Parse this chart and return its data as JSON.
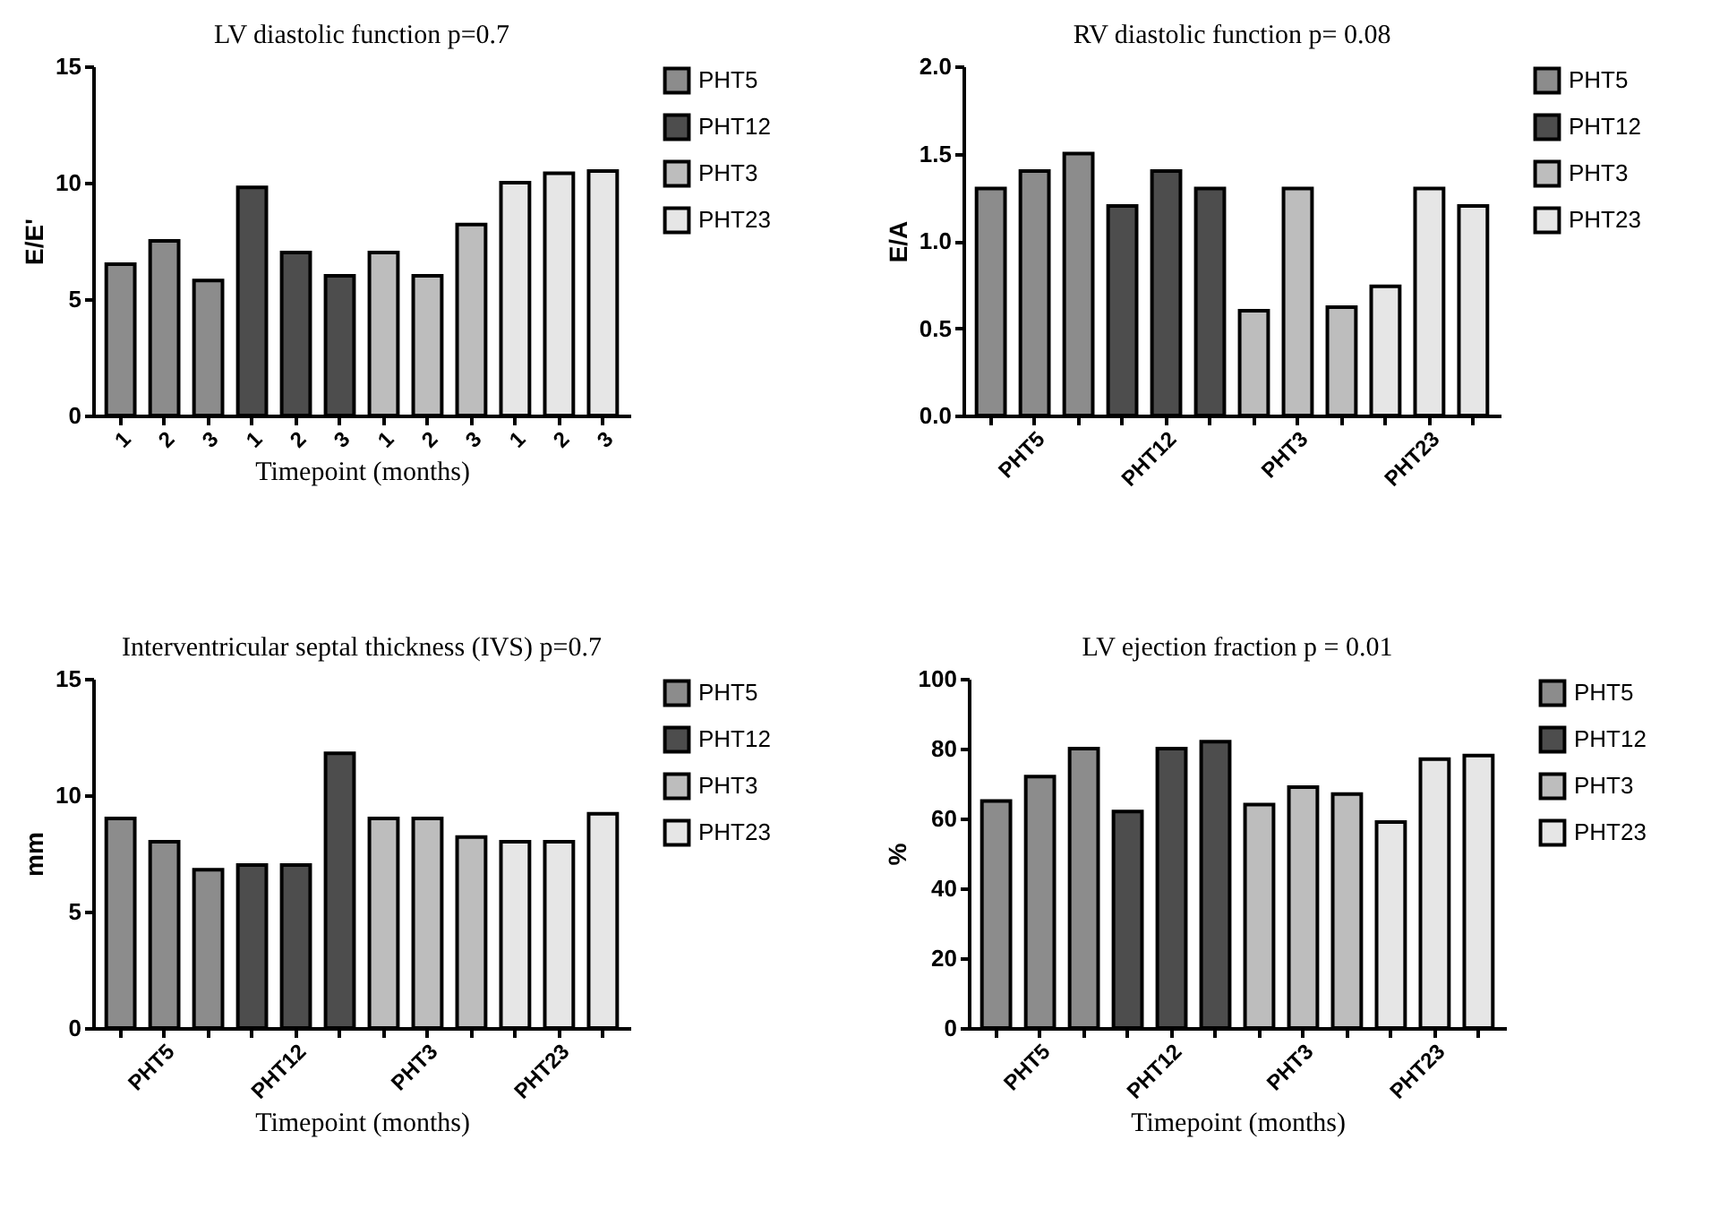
{
  "chart_data": [
    {
      "type": "bar",
      "title": "LV diastolic function p=0.7",
      "xlabel": "Timepoint (months)",
      "ylabel": "E/E'",
      "categories": [
        "1",
        "2",
        "3",
        "1",
        "2",
        "3",
        "1",
        "2",
        "3",
        "1",
        "2",
        "3"
      ],
      "ylim": [
        0,
        15
      ],
      "yticks": [
        0,
        5,
        10,
        15
      ],
      "grid": false,
      "legend": "right",
      "series": [
        {
          "name": "PHT5",
          "color": "#8c8c8c",
          "values": [
            6.5,
            7.5,
            5.8,
            null,
            null,
            null,
            null,
            null,
            null,
            null,
            null,
            null
          ]
        },
        {
          "name": "PHT12",
          "color": "#4d4d4d",
          "values": [
            null,
            null,
            null,
            9.8,
            7.0,
            6.0,
            null,
            null,
            null,
            null,
            null,
            null
          ]
        },
        {
          "name": "PHT3",
          "color": "#bdbdbd",
          "values": [
            null,
            null,
            null,
            null,
            null,
            null,
            7.0,
            6.0,
            8.2,
            null,
            null,
            null
          ]
        },
        {
          "name": "PHT23",
          "color": "#e6e6e6",
          "values": [
            null,
            null,
            null,
            null,
            null,
            null,
            null,
            null,
            null,
            10.0,
            10.4,
            10.5
          ]
        }
      ]
    },
    {
      "type": "bar",
      "title": "RV diastolic function p= 0.08",
      "ylabel": "E/A",
      "categories": [
        null,
        "PHT5",
        null,
        null,
        "PHT12",
        null,
        null,
        "PHT3",
        null,
        null,
        "PHT23",
        null
      ],
      "ylim": [
        0,
        2
      ],
      "yticks": [
        {
          "value": 0,
          "label": "0.0"
        },
        {
          "value": 0.5,
          "label": "0.5"
        },
        {
          "value": 1,
          "label": "1.0"
        },
        {
          "value": 1.5,
          "label": "1.5"
        },
        {
          "value": 2,
          "label": "2.0"
        }
      ],
      "grid": false,
      "legend": "right",
      "series": [
        {
          "name": "PHT5",
          "color": "#8c8c8c",
          "values": [
            1.3,
            1.4,
            1.5,
            null,
            null,
            null,
            null,
            null,
            null,
            null,
            null,
            null
          ]
        },
        {
          "name": "PHT12",
          "color": "#4d4d4d",
          "values": [
            null,
            null,
            null,
            1.2,
            1.4,
            1.3,
            null,
            null,
            null,
            null,
            null,
            null
          ]
        },
        {
          "name": "PHT3",
          "color": "#bdbdbd",
          "values": [
            null,
            null,
            null,
            null,
            null,
            null,
            0.6,
            1.3,
            0.62,
            null,
            null,
            null
          ]
        },
        {
          "name": "PHT23",
          "color": "#e6e6e6",
          "values": [
            null,
            null,
            null,
            null,
            null,
            null,
            null,
            null,
            null,
            0.74,
            1.3,
            1.2
          ]
        }
      ]
    },
    {
      "type": "bar",
      "title": "Interventricular septal thickness (IVS) p=0.7",
      "xlabel": "Timepoint (months)",
      "ylabel": "mm",
      "categories": [
        null,
        "PHT5",
        null,
        null,
        "PHT12",
        null,
        null,
        "PHT3",
        null,
        null,
        "PHT23",
        null
      ],
      "ylim": [
        0,
        15
      ],
      "yticks": [
        0,
        5,
        10,
        15
      ],
      "grid": false,
      "legend": "right",
      "series": [
        {
          "name": "PHT5",
          "color": "#8c8c8c",
          "values": [
            9.0,
            8.0,
            6.8,
            null,
            null,
            null,
            null,
            null,
            null,
            null,
            null,
            null
          ]
        },
        {
          "name": "PHT12",
          "color": "#4d4d4d",
          "values": [
            null,
            null,
            null,
            7.0,
            7.0,
            11.8,
            null,
            null,
            null,
            null,
            null,
            null
          ]
        },
        {
          "name": "PHT3",
          "color": "#bdbdbd",
          "values": [
            null,
            null,
            null,
            null,
            null,
            null,
            9.0,
            9.0,
            8.2,
            null,
            null,
            null
          ]
        },
        {
          "name": "PHT23",
          "color": "#e6e6e6",
          "values": [
            null,
            null,
            null,
            null,
            null,
            null,
            null,
            null,
            null,
            8.0,
            8.0,
            9.2
          ]
        }
      ]
    },
    {
      "type": "bar",
      "title": "LV ejection fraction p = 0.01",
      "xlabel": "Timepoint (months)",
      "ylabel": "%",
      "categories": [
        null,
        "PHT5",
        null,
        null,
        "PHT12",
        null,
        null,
        "PHT3",
        null,
        null,
        "PHT23",
        null
      ],
      "ylim": [
        0,
        100
      ],
      "yticks": [
        0,
        20,
        40,
        60,
        80,
        100
      ],
      "grid": false,
      "legend": "right",
      "series": [
        {
          "name": "PHT5",
          "color": "#8c8c8c",
          "values": [
            65,
            72,
            80,
            null,
            null,
            null,
            null,
            null,
            null,
            null,
            null,
            null
          ]
        },
        {
          "name": "PHT12",
          "color": "#4d4d4d",
          "values": [
            null,
            null,
            null,
            62,
            80,
            82,
            null,
            null,
            null,
            null,
            null,
            null
          ]
        },
        {
          "name": "PHT3",
          "color": "#bdbdbd",
          "values": [
            null,
            null,
            null,
            null,
            null,
            null,
            64,
            69,
            67,
            null,
            null,
            null
          ]
        },
        {
          "name": "PHT23",
          "color": "#e6e6e6",
          "values": [
            null,
            null,
            null,
            null,
            null,
            null,
            null,
            null,
            null,
            59,
            77,
            78
          ]
        }
      ]
    }
  ]
}
